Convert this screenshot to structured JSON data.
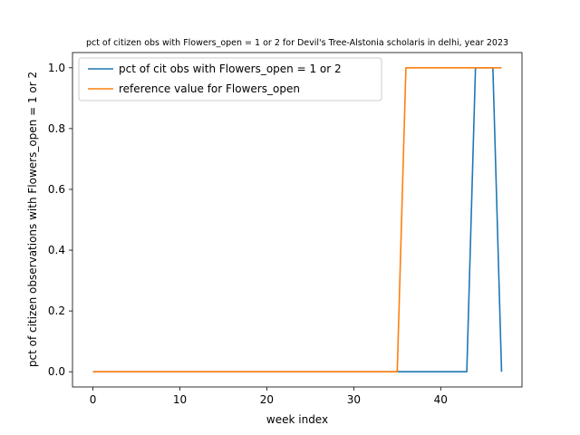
{
  "chart_data": {
    "type": "line",
    "title": "pct of citizen obs with Flowers_open = 1 or 2 for Devil's Tree-Alstonia scholaris in delhi, year 2023",
    "xlabel": "week index",
    "ylabel": "pct of citizen observations with Flowers_open = 1 or 2",
    "xlim": [
      -2.35,
      49.35
    ],
    "ylim": [
      -0.05,
      1.05
    ],
    "xticks": [
      0,
      10,
      20,
      30,
      40
    ],
    "yticks": [
      0.0,
      0.2,
      0.4,
      0.6,
      0.8,
      1.0
    ],
    "xtick_labels": [
      "0",
      "10",
      "20",
      "30",
      "40"
    ],
    "ytick_labels": [
      "0.0",
      "0.2",
      "0.4",
      "0.6",
      "0.8",
      "1.0"
    ],
    "grid": false,
    "legend_position": "top-left",
    "series": [
      {
        "name": "pct of cit obs with Flowers_open = 1 or 2",
        "color": "#1f77b4",
        "x": [
          0,
          43,
          44,
          46,
          47
        ],
        "y": [
          0,
          0,
          1,
          1,
          0
        ]
      },
      {
        "name": "reference value for Flowers_open",
        "color": "#ff7f0e",
        "x": [
          0,
          35,
          36,
          47
        ],
        "y": [
          0,
          0,
          1,
          1
        ]
      }
    ]
  }
}
